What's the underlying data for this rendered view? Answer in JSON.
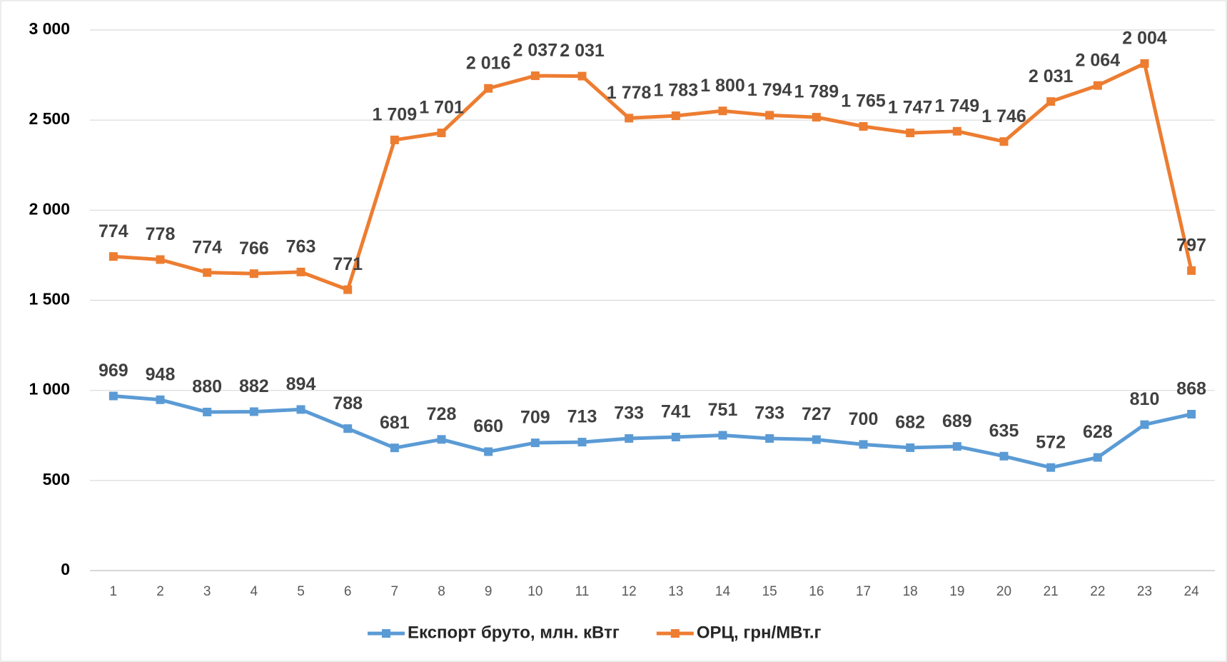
{
  "chart_data": {
    "type": "line",
    "stacked": true,
    "categories": [
      "1",
      "2",
      "3",
      "4",
      "5",
      "6",
      "7",
      "8",
      "9",
      "10",
      "11",
      "12",
      "13",
      "14",
      "15",
      "16",
      "17",
      "18",
      "19",
      "20",
      "21",
      "22",
      "23",
      "24"
    ],
    "series": [
      {
        "name": "Експорт бруто, млн. кВтг",
        "color": "#5b9bd5",
        "values": [
          969,
          948,
          880,
          882,
          894,
          788,
          681,
          728,
          660,
          709,
          713,
          733,
          741,
          751,
          733,
          727,
          700,
          682,
          689,
          635,
          572,
          628,
          810,
          868
        ]
      },
      {
        "name": "ОРЦ, грн/МВт.г",
        "color": "#ed7d31",
        "values": [
          774,
          778,
          774,
          766,
          763,
          771,
          1709,
          1701,
          2016,
          2037,
          2031,
          1778,
          1783,
          1800,
          1794,
          1789,
          1765,
          1747,
          1749,
          1746,
          2031,
          2064,
          2004,
          797
        ],
        "value_labels": [
          "774",
          "778",
          "774",
          "766",
          "763",
          "771",
          "1 709",
          "1 701",
          "2 016",
          "2 037",
          "2 031",
          "1 778",
          "1 783",
          "1 800",
          "1 794",
          "1 789",
          "1 765",
          "1 747",
          "1 749",
          "1 746",
          "2 031",
          "2 064",
          "2 004",
          "797"
        ]
      }
    ],
    "ylim": [
      0,
      3000
    ],
    "yticks": [
      0,
      500,
      {
        "value": 1000,
        "label": "1 000"
      },
      {
        "value": 1500,
        "label": "1 500"
      },
      {
        "value": 2000,
        "label": "2 000"
      },
      {
        "value": 2500,
        "label": "2 500"
      },
      {
        "value": 3000,
        "label": "3 000"
      }
    ],
    "grid": true,
    "legend": "bottom"
  }
}
